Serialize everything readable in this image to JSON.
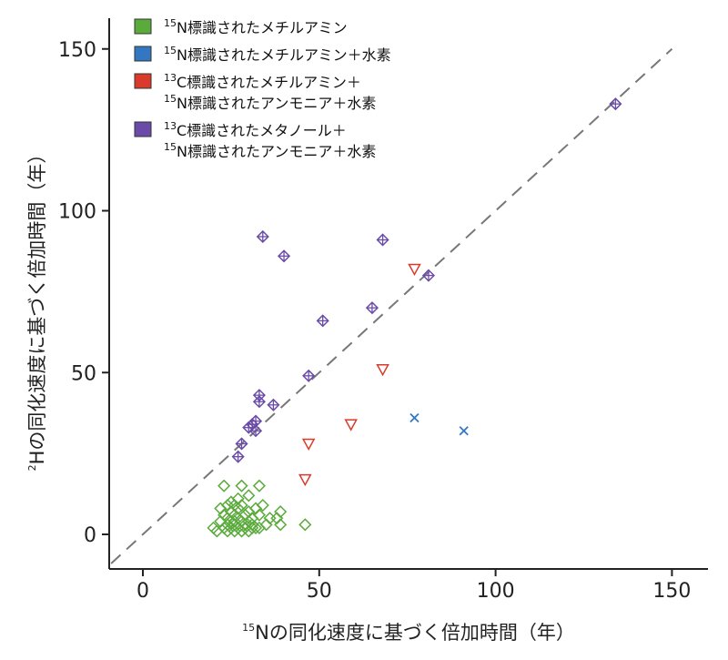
{
  "chart_data": {
    "type": "scatter",
    "xlabel": "¹⁵Nの同化速度に基づく倍加時間（年）",
    "xlabel_sup": "15",
    "xlabel_rest": "Nの同化速度に基づく倍加時間（年）",
    "ylabel": "²Hの同化速度に基づく倍加時間（年）",
    "ylabel_sup": "2",
    "ylabel_rest": "Hの同化速度に基づく倍加時間（年）",
    "xlim": [
      -10,
      160
    ],
    "ylim": [
      -10,
      160
    ],
    "x_ticks": [
      0,
      50,
      100,
      150
    ],
    "y_ticks": [
      0,
      50,
      100,
      150
    ],
    "reference_line": "y = x",
    "legend_position": "top-left",
    "series": [
      {
        "name": "¹⁵N標識されたメチルアミン",
        "legend_lines": [
          {
            "sup": "15",
            "text": "N標識されたメチルアミン"
          }
        ],
        "color": "#5aaa3c",
        "marker": "diamond",
        "points": [
          [
            22,
            8
          ],
          [
            23,
            6
          ],
          [
            23,
            15
          ],
          [
            24,
            9
          ],
          [
            25,
            7
          ],
          [
            25,
            10
          ],
          [
            26,
            6
          ],
          [
            26,
            4
          ],
          [
            27,
            8
          ],
          [
            27,
            11
          ],
          [
            28,
            15
          ],
          [
            28,
            9
          ],
          [
            29,
            6
          ],
          [
            29,
            3
          ],
          [
            30,
            12
          ],
          [
            30,
            4
          ],
          [
            31,
            2
          ],
          [
            31,
            5
          ],
          [
            33,
            6
          ],
          [
            33,
            15
          ],
          [
            34,
            9
          ],
          [
            35,
            3
          ],
          [
            36,
            5
          ],
          [
            38,
            5
          ],
          [
            39,
            3
          ],
          [
            39,
            7
          ],
          [
            46,
            3
          ],
          [
            20,
            2
          ],
          [
            21,
            1
          ],
          [
            22,
            4
          ],
          [
            23,
            2
          ],
          [
            24,
            3
          ],
          [
            24,
            1
          ],
          [
            25,
            2
          ],
          [
            25,
            4
          ],
          [
            26,
            1
          ],
          [
            26,
            3
          ],
          [
            27,
            2
          ],
          [
            27,
            5
          ],
          [
            28,
            1
          ],
          [
            28,
            4
          ],
          [
            29,
            2
          ],
          [
            30,
            1
          ],
          [
            30,
            7
          ],
          [
            31,
            3
          ],
          [
            32,
            2
          ],
          [
            33,
            2
          ],
          [
            32,
            8
          ],
          [
            24,
            5
          ],
          [
            26,
            9
          ]
        ]
      },
      {
        "name": "¹⁵N標識されたメチルアミン＋水素",
        "legend_lines": [
          {
            "sup": "15",
            "text": "N標識されたメチルアミン＋水素"
          }
        ],
        "color": "#3377c2",
        "marker": "x",
        "points": [
          [
            77,
            36
          ],
          [
            91,
            32
          ]
        ]
      },
      {
        "name": "¹³C標識されたメチルアミン＋¹⁵N標識されたアンモニア＋水素",
        "legend_lines": [
          {
            "sup": "13",
            "text": "C標識されたメチルアミン＋"
          },
          {
            "sup": "15",
            "text": "N標識されたアンモニア＋水素"
          }
        ],
        "color": "#d93a2b",
        "marker": "triangle-down",
        "points": [
          [
            46,
            17
          ],
          [
            47,
            28
          ],
          [
            59,
            34
          ],
          [
            68,
            51
          ],
          [
            77,
            82
          ]
        ]
      },
      {
        "name": "¹³C標識されたメタノール＋¹⁵N標識されたアンモニア＋水素",
        "legend_lines": [
          {
            "sup": "13",
            "text": "C標識されたメタノール＋"
          },
          {
            "sup": "15",
            "text": "N標識されたアンモニア＋水素"
          }
        ],
        "color": "#6a4ba8",
        "marker": "crossed-diamond",
        "points": [
          [
            27,
            24
          ],
          [
            28,
            28
          ],
          [
            30,
            33
          ],
          [
            31,
            34
          ],
          [
            32,
            35
          ],
          [
            32,
            32
          ],
          [
            33,
            41
          ],
          [
            33,
            43
          ],
          [
            37,
            40
          ],
          [
            34,
            92
          ],
          [
            40,
            86
          ],
          [
            47,
            49
          ],
          [
            51,
            66
          ],
          [
            65,
            70
          ],
          [
            68,
            91
          ],
          [
            81,
            80
          ],
          [
            134,
            133
          ]
        ]
      }
    ]
  }
}
